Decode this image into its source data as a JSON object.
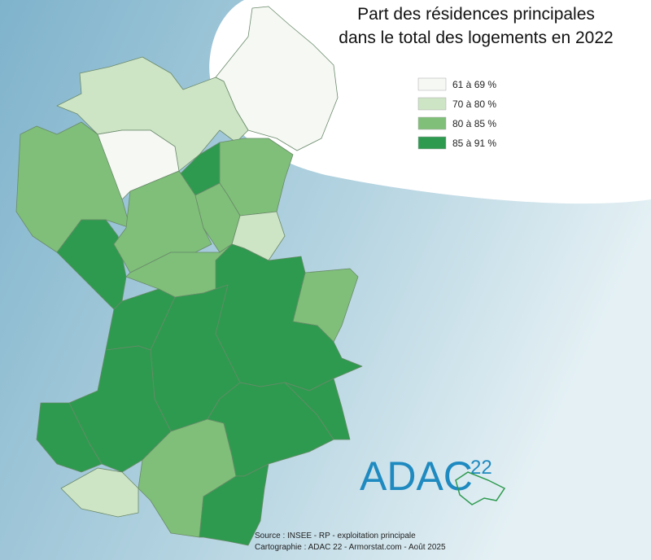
{
  "title": [
    "Part des résidences principales",
    "dans le total des logements en 2022"
  ],
  "legend": [
    {
      "label": "61 à 69 %",
      "color": "#f5f8f3"
    },
    {
      "label": "70 à 80 %",
      "color": "#cde4c5"
    },
    {
      "label": "80 à 85 %",
      "color": "#7fbf79"
    },
    {
      "label": "85 à 91 %",
      "color": "#2e9a4f"
    }
  ],
  "source": [
    "Source : INSEE - RP - exploitation principale",
    "Cartographie : ADAC 22 - Armorstat.com - Août 2025"
  ],
  "logo": {
    "text": "ADAC",
    "number": "22"
  }
}
